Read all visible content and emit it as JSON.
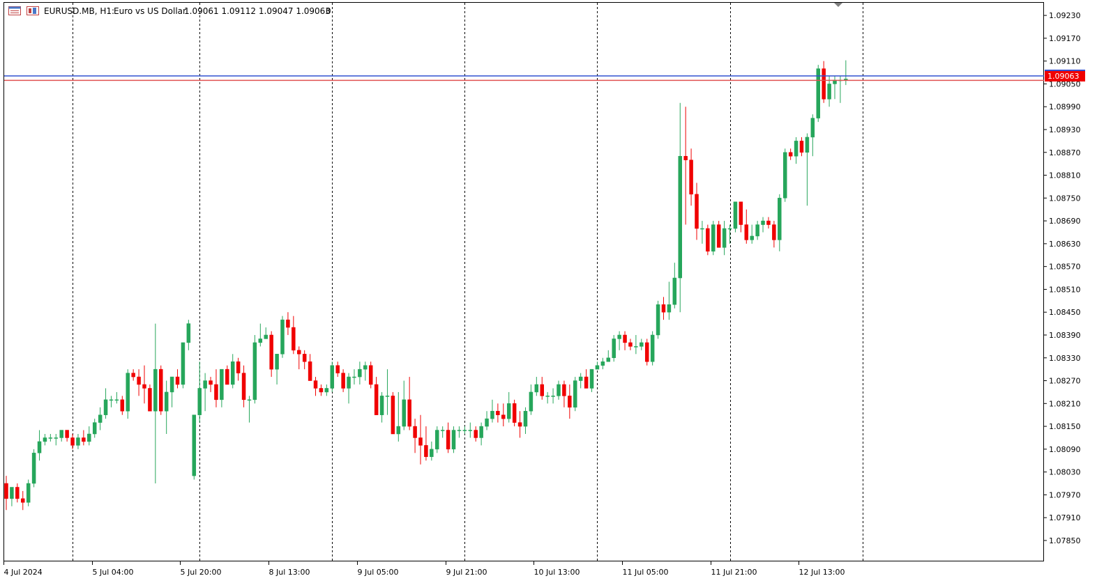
{
  "header": {
    "symbol_timeframe": "EURUSD.MB, H1:",
    "description": "Euro vs US Dollar",
    "ohlc": "1.09061 1.09112 1.09047 1.09063",
    "volume": "0"
  },
  "icons": {
    "chart_window": "chart-window-icon",
    "indicators": "indicators-icon"
  },
  "colors": {
    "bull": "#26a65b",
    "bear": "#f00000",
    "bid_line": "#3050d0",
    "ask_line": "#e05050",
    "price_badge": "#f00000",
    "separator": "#000000",
    "axis_text": "#000000"
  },
  "chart_data": {
    "type": "candlestick",
    "symbol": "EURUSD.MB",
    "timeframe": "H1",
    "current_price_label": "1.09063",
    "bid_price": 1.09063,
    "ask_price": 1.09071,
    "ylim": [
      1.07795,
      1.09265
    ],
    "y_ticks": [
      "1.09230",
      "1.09170",
      "1.09110",
      "1.09050",
      "1.08990",
      "1.08930",
      "1.08870",
      "1.08810",
      "1.08750",
      "1.08690",
      "1.08630",
      "1.08570",
      "1.08510",
      "1.08450",
      "1.08390",
      "1.08330",
      "1.08270",
      "1.08210",
      "1.08150",
      "1.08090",
      "1.08030",
      "1.07970",
      "1.07910",
      "1.07850"
    ],
    "x_ticks": [
      "4 Jul 2024",
      "5 Jul 04:00",
      "5 Jul 20:00",
      "8 Jul 13:00",
      "9 Jul 05:00",
      "9 Jul 21:00",
      "10 Jul 13:00",
      "11 Jul 05:00",
      "11 Jul 21:00",
      "12 Jul 13:00"
    ],
    "x_tick_bar_index": [
      0,
      16,
      32,
      48,
      64,
      80,
      96,
      112,
      128,
      144
    ],
    "day_separator_bar_index": [
      12,
      35,
      59,
      83,
      107,
      131,
      155
    ],
    "candles": [
      [
        1.08,
        1.0802,
        1.0793,
        1.0796
      ],
      [
        1.0796,
        1.0799,
        1.0794,
        1.0799
      ],
      [
        1.0799,
        1.08,
        1.0795,
        1.0796
      ],
      [
        1.0796,
        1.0798,
        1.0793,
        1.0795
      ],
      [
        1.0795,
        1.0801,
        1.0794,
        1.08
      ],
      [
        1.08,
        1.0809,
        1.0799,
        1.0808
      ],
      [
        1.0808,
        1.0814,
        1.0806,
        1.0811
      ],
      [
        1.0811,
        1.0813,
        1.081,
        1.0812
      ],
      [
        1.0812,
        1.0813,
        1.0811,
        1.0812
      ],
      [
        1.0812,
        1.0813,
        1.081,
        1.0812
      ],
      [
        1.0812,
        1.0814,
        1.0811,
        1.0814
      ],
      [
        1.0814,
        1.0814,
        1.0811,
        1.0812
      ],
      [
        1.0812,
        1.0813,
        1.0809,
        1.081
      ],
      [
        1.081,
        1.0813,
        1.0809,
        1.0812
      ],
      [
        1.0812,
        1.0814,
        1.081,
        1.0811
      ],
      [
        1.0811,
        1.0815,
        1.081,
        1.0813
      ],
      [
        1.0813,
        1.0817,
        1.0812,
        1.0816
      ],
      [
        1.0816,
        1.082,
        1.0814,
        1.0818
      ],
      [
        1.0818,
        1.0825,
        1.0817,
        1.0822
      ],
      [
        1.0822,
        1.0823,
        1.082,
        1.0822
      ],
      [
        1.0822,
        1.0824,
        1.0821,
        1.0822
      ],
      [
        1.0822,
        1.0823,
        1.0818,
        1.0819
      ],
      [
        1.0819,
        1.083,
        1.0817,
        1.0829
      ],
      [
        1.0829,
        1.083,
        1.0827,
        1.0828
      ],
      [
        1.0828,
        1.083,
        1.0823,
        1.0826
      ],
      [
        1.0826,
        1.0831,
        1.0821,
        1.0825
      ],
      [
        1.0825,
        1.0826,
        1.0819,
        1.0819
      ],
      [
        1.0819,
        1.0842,
        1.08,
        1.083
      ],
      [
        1.083,
        1.0831,
        1.0818,
        1.0819
      ],
      [
        1.0819,
        1.0827,
        1.0813,
        1.0824
      ],
      [
        1.0824,
        1.0828,
        1.082,
        1.0828
      ],
      [
        1.0828,
        1.083,
        1.0825,
        1.0826
      ],
      [
        1.0826,
        1.0837,
        1.0825,
        1.0837
      ],
      [
        1.0837,
        1.0843,
        1.0835,
        1.0842
      ],
      [
        1.0802,
        1.0818,
        1.0801,
        1.0818
      ],
      [
        1.0818,
        1.0832,
        1.0816,
        1.0825
      ],
      [
        1.0825,
        1.0829,
        1.0819,
        1.0827
      ],
      [
        1.0827,
        1.0828,
        1.0824,
        1.0826
      ],
      [
        1.0826,
        1.083,
        1.082,
        1.0822
      ],
      [
        1.0822,
        1.083,
        1.082,
        1.083
      ],
      [
        1.083,
        1.0831,
        1.0826,
        1.0826
      ],
      [
        1.0826,
        1.0834,
        1.0825,
        1.0832
      ],
      [
        1.0832,
        1.0833,
        1.0827,
        1.0829
      ],
      [
        1.0829,
        1.0831,
        1.082,
        1.0822
      ],
      [
        1.0822,
        1.0823,
        1.0816,
        1.0822
      ],
      [
        1.0822,
        1.0839,
        1.0821,
        1.0837
      ],
      [
        1.0837,
        1.0842,
        1.0836,
        1.0838
      ],
      [
        1.0838,
        1.0841,
        1.0838,
        1.0839
      ],
      [
        1.0839,
        1.084,
        1.0828,
        1.083
      ],
      [
        1.083,
        1.0834,
        1.0826,
        1.0834
      ],
      [
        1.0834,
        1.0844,
        1.0833,
        1.0843
      ],
      [
        1.0843,
        1.0845,
        1.0839,
        1.0841
      ],
      [
        1.0841,
        1.0844,
        1.0834,
        1.0835
      ],
      [
        1.0835,
        1.0836,
        1.083,
        1.0834
      ],
      [
        1.0834,
        1.0835,
        1.083,
        1.0832
      ],
      [
        1.0832,
        1.0834,
        1.0827,
        1.0827
      ],
      [
        1.0827,
        1.0828,
        1.0823,
        1.0825
      ],
      [
        1.0825,
        1.0826,
        1.0823,
        1.0824
      ],
      [
        1.0824,
        1.0826,
        1.0823,
        1.0825
      ],
      [
        1.0825,
        1.0832,
        1.0824,
        1.0831
      ],
      [
        1.0831,
        1.0832,
        1.0828,
        1.0829
      ],
      [
        1.0829,
        1.083,
        1.0824,
        1.0825
      ],
      [
        1.0825,
        1.0829,
        1.0821,
        1.0828
      ],
      [
        1.0828,
        1.083,
        1.0826,
        1.0828
      ],
      [
        1.0828,
        1.0832,
        1.0826,
        1.083
      ],
      [
        1.083,
        1.0832,
        1.0827,
        1.0831
      ],
      [
        1.0831,
        1.0832,
        1.0825,
        1.0826
      ],
      [
        1.0826,
        1.0828,
        1.0818,
        1.0818
      ],
      [
        1.0818,
        1.0824,
        1.0816,
        1.0823
      ],
      [
        1.0823,
        1.083,
        1.0818,
        1.0823
      ],
      [
        1.0823,
        1.0824,
        1.0813,
        1.0813
      ],
      [
        1.0813,
        1.0824,
        1.0811,
        1.0815
      ],
      [
        1.0815,
        1.0827,
        1.0814,
        1.0822
      ],
      [
        1.0822,
        1.0828,
        1.0814,
        1.0815
      ],
      [
        1.0815,
        1.0817,
        1.0808,
        1.0812
      ],
      [
        1.0812,
        1.0818,
        1.0805,
        1.081
      ],
      [
        1.081,
        1.0815,
        1.0806,
        1.0807
      ],
      [
        1.0807,
        1.0811,
        1.0806,
        1.0809
      ],
      [
        1.0809,
        1.0815,
        1.0808,
        1.0814
      ],
      [
        1.0814,
        1.0815,
        1.0812,
        1.0814
      ],
      [
        1.0814,
        1.0816,
        1.0808,
        1.0809
      ],
      [
        1.0809,
        1.0815,
        1.0808,
        1.0814
      ],
      [
        1.0814,
        1.0815,
        1.0812,
        1.0814
      ],
      [
        1.0814,
        1.0815,
        1.0813,
        1.0814
      ],
      [
        1.0814,
        1.0816,
        1.0812,
        1.0814
      ],
      [
        1.0814,
        1.0815,
        1.0811,
        1.0812
      ],
      [
        1.0812,
        1.0816,
        1.081,
        1.0815
      ],
      [
        1.0815,
        1.0819,
        1.0814,
        1.0817
      ],
      [
        1.0817,
        1.0822,
        1.0816,
        1.0819
      ],
      [
        1.0819,
        1.0821,
        1.0816,
        1.0818
      ],
      [
        1.0818,
        1.0821,
        1.0815,
        1.0817
      ],
      [
        1.0817,
        1.0824,
        1.0816,
        1.0821
      ],
      [
        1.0821,
        1.0822,
        1.0815,
        1.0816
      ],
      [
        1.0816,
        1.0819,
        1.0812,
        1.0815
      ],
      [
        1.0815,
        1.082,
        1.0813,
        1.0819
      ],
      [
        1.0819,
        1.0826,
        1.0818,
        1.0824
      ],
      [
        1.0824,
        1.0828,
        1.0823,
        1.0826
      ],
      [
        1.0826,
        1.0828,
        1.0822,
        1.0823
      ],
      [
        1.0823,
        1.0824,
        1.0821,
        1.0823
      ],
      [
        1.0823,
        1.0825,
        1.0821,
        1.0823
      ],
      [
        1.0823,
        1.0827,
        1.0822,
        1.0826
      ],
      [
        1.0826,
        1.0827,
        1.082,
        1.0823
      ],
      [
        1.0823,
        1.0826,
        1.0817,
        1.082
      ],
      [
        1.082,
        1.0828,
        1.0819,
        1.0827
      ],
      [
        1.0827,
        1.0829,
        1.0825,
        1.0828
      ],
      [
        1.0828,
        1.083,
        1.0825,
        1.0825
      ],
      [
        1.0825,
        1.083,
        1.0824,
        1.083
      ],
      [
        1.083,
        1.0832,
        1.083,
        1.0831
      ],
      [
        1.0831,
        1.0833,
        1.083,
        1.0832
      ],
      [
        1.0832,
        1.0835,
        1.0832,
        1.0833
      ],
      [
        1.0833,
        1.0839,
        1.0832,
        1.0838
      ],
      [
        1.0838,
        1.084,
        1.0835,
        1.0839
      ],
      [
        1.0839,
        1.084,
        1.0835,
        1.0837
      ],
      [
        1.0837,
        1.0838,
        1.0835,
        1.0836
      ],
      [
        1.0836,
        1.0839,
        1.0834,
        1.0836
      ],
      [
        1.0836,
        1.0838,
        1.0835,
        1.0837
      ],
      [
        1.0837,
        1.0838,
        1.0831,
        1.0832
      ],
      [
        1.0832,
        1.084,
        1.0831,
        1.0839
      ],
      [
        1.0839,
        1.0848,
        1.0838,
        1.0847
      ],
      [
        1.0847,
        1.0849,
        1.0843,
        1.0845
      ],
      [
        1.0845,
        1.0853,
        1.0843,
        1.0847
      ],
      [
        1.0847,
        1.0858,
        1.0846,
        1.0854
      ],
      [
        1.0854,
        1.09,
        1.0845,
        1.0886
      ],
      [
        1.0886,
        1.0899,
        1.0868,
        1.0885
      ],
      [
        1.0885,
        1.0888,
        1.0873,
        1.0876
      ],
      [
        1.0876,
        1.0879,
        1.0864,
        1.0867
      ],
      [
        1.0867,
        1.0869,
        1.0863,
        1.0867
      ],
      [
        1.0867,
        1.0868,
        1.086,
        1.0861
      ],
      [
        1.0861,
        1.0869,
        1.086,
        1.0868
      ],
      [
        1.0868,
        1.0869,
        1.0862,
        1.0862
      ],
      [
        1.0862,
        1.0869,
        1.086,
        1.0867
      ],
      [
        1.0867,
        1.0868,
        1.0863,
        1.0867
      ],
      [
        1.0867,
        1.0874,
        1.0866,
        1.0874
      ],
      [
        1.0874,
        1.0874,
        1.0866,
        1.0868
      ],
      [
        1.0868,
        1.0872,
        1.0863,
        1.0864
      ],
      [
        1.0864,
        1.0868,
        1.0863,
        1.0865
      ],
      [
        1.0865,
        1.0869,
        1.0864,
        1.0868
      ],
      [
        1.0868,
        1.087,
        1.0866,
        1.0869
      ],
      [
        1.0869,
        1.087,
        1.0867,
        1.0868
      ],
      [
        1.0868,
        1.0869,
        1.0862,
        1.0864
      ],
      [
        1.0864,
        1.0876,
        1.0861,
        1.0875
      ],
      [
        1.0875,
        1.0888,
        1.0874,
        1.0887
      ],
      [
        1.0887,
        1.0888,
        1.0885,
        1.0886
      ],
      [
        1.0886,
        1.0891,
        1.0884,
        1.089
      ],
      [
        1.089,
        1.0891,
        1.0886,
        1.0887
      ],
      [
        1.0887,
        1.0892,
        1.0873,
        1.0891
      ],
      [
        1.0891,
        1.0897,
        1.0886,
        1.0896
      ],
      [
        1.0896,
        1.091,
        1.0895,
        1.0909
      ],
      [
        1.0909,
        1.0911,
        1.09,
        1.0901
      ],
      [
        1.0901,
        1.0907,
        1.0899,
        1.0905
      ],
      [
        1.0905,
        1.0907,
        1.0901,
        1.0906
      ],
      [
        1.0906,
        1.0907,
        1.09,
        1.0906
      ],
      [
        1.09061,
        1.09112,
        1.09047,
        1.09063
      ]
    ]
  }
}
